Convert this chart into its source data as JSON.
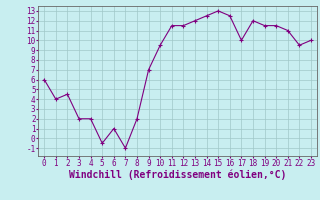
{
  "x": [
    0,
    1,
    2,
    3,
    4,
    5,
    6,
    7,
    8,
    9,
    10,
    11,
    12,
    13,
    14,
    15,
    16,
    17,
    18,
    19,
    20,
    21,
    22,
    23
  ],
  "y": [
    6,
    4,
    4.5,
    2,
    2,
    -0.5,
    1,
    -1,
    2,
    7,
    9.5,
    11.5,
    11.5,
    12,
    12.5,
    13,
    12.5,
    10,
    12,
    11.5,
    11.5,
    11,
    9.5,
    10
  ],
  "line_color": "#800080",
  "marker": "+",
  "marker_size": 3,
  "marker_color": "#800080",
  "bg_color": "#c8eef0",
  "grid_color": "#a0c8c8",
  "xlabel": "Windchill (Refroidissement éolien,°C)",
  "xlim": [
    -0.5,
    23.5
  ],
  "ylim": [
    -1.8,
    13.5
  ],
  "xticks": [
    0,
    1,
    2,
    3,
    4,
    5,
    6,
    7,
    8,
    9,
    10,
    11,
    12,
    13,
    14,
    15,
    16,
    17,
    18,
    19,
    20,
    21,
    22,
    23
  ],
  "yticks": [
    -1,
    0,
    1,
    2,
    3,
    4,
    5,
    6,
    7,
    8,
    9,
    10,
    11,
    12,
    13
  ],
  "tick_fontsize": 5.5,
  "xlabel_fontsize": 7,
  "axis_label_color": "#800080",
  "line_width": 0.8
}
